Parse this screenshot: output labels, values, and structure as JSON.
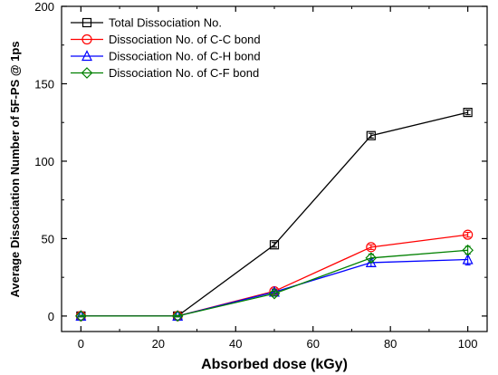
{
  "chart_data": {
    "type": "line",
    "xlabel": "Absorbed dose (kGy)",
    "ylabel": "Average Dissociation Number of 5F-PS @ 1ps",
    "xlim": [
      -5,
      105
    ],
    "ylim": [
      -10,
      200
    ],
    "x_ticks": [
      0,
      20,
      40,
      60,
      80,
      100
    ],
    "y_ticks": [
      0,
      50,
      100,
      150,
      200
    ],
    "legend_position": "top-left",
    "grid": false,
    "x": [
      0,
      25,
      50,
      75,
      100
    ],
    "series": [
      {
        "name": "Total Dissociation No.",
        "color": "#000000",
        "marker": "square",
        "values": [
          0,
          0,
          46,
          116.5,
          131.5
        ],
        "errors": [
          0.5,
          0.5,
          1.5,
          1.5,
          1.5
        ]
      },
      {
        "name": "Dissociation No. of C-C bond",
        "color": "#ff0000",
        "marker": "circle",
        "values": [
          0,
          0,
          16,
          44.5,
          52.5
        ],
        "errors": [
          0.5,
          0.5,
          1.5,
          1.5,
          1.5
        ]
      },
      {
        "name": "Dissociation No. of C-H bond",
        "color": "#0000ff",
        "marker": "triangle",
        "values": [
          0,
          0,
          15.5,
          34.5,
          36.5
        ],
        "errors": [
          0.5,
          0.5,
          1.5,
          2.5,
          3.5
        ]
      },
      {
        "name": "Dissociation No. of C-F bond",
        "color": "#008000",
        "marker": "diamond",
        "values": [
          0,
          0,
          14.5,
          37.5,
          42.5
        ],
        "errors": [
          0.5,
          0.5,
          1.5,
          2.5,
          2.5
        ]
      }
    ]
  }
}
